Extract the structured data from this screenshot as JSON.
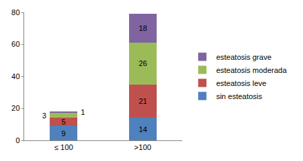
{
  "chart_data": {
    "type": "bar",
    "categories": [
      "≤ 100",
      ">100"
    ],
    "series": [
      {
        "name": "sin esteatosis",
        "color": "#4f81bd",
        "values": [
          9,
          14
        ]
      },
      {
        "name": "esteatosis leve",
        "color": "#c0504d",
        "values": [
          5,
          21
        ]
      },
      {
        "name": "esteatosis moderada",
        "color": "#9bbb59",
        "values": [
          3,
          26
        ]
      },
      {
        "name": "esteatosis grave",
        "color": "#8064a2",
        "values": [
          1,
          18
        ]
      }
    ],
    "stacked": true,
    "data_labels": true,
    "ylim": [
      0,
      80
    ],
    "yticks": [
      0,
      20,
      40,
      60,
      80
    ],
    "grid": false,
    "legend": "right"
  }
}
